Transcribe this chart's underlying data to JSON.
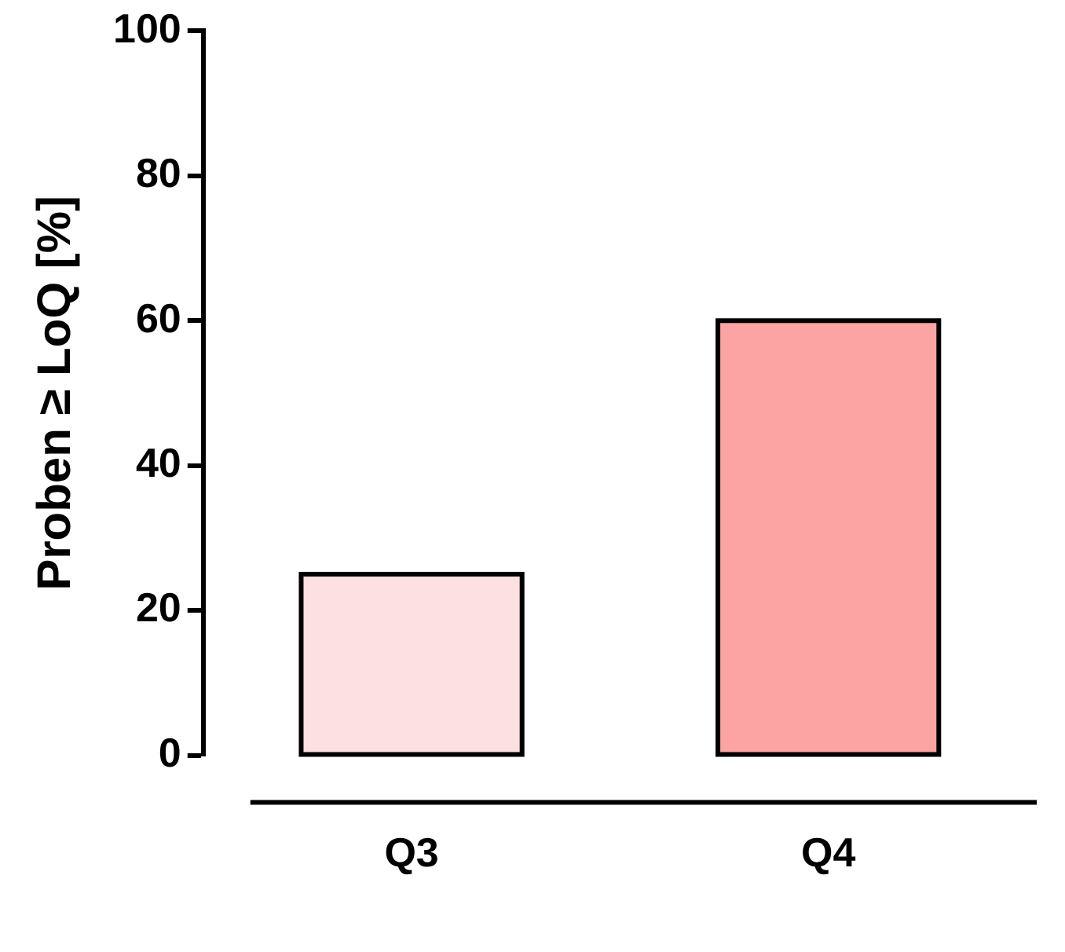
{
  "chart_data": {
    "type": "bar",
    "ylabel": "Proben ≥ LoQ [%]",
    "categories": [
      "Q3",
      "Q4"
    ],
    "values": [
      25,
      60
    ],
    "colors": [
      "#fde0e0",
      "#fca3a3"
    ],
    "ylim": [
      0,
      100
    ],
    "yticks": [
      0,
      20,
      40,
      60,
      80,
      100
    ],
    "grid": false,
    "legend": false
  }
}
